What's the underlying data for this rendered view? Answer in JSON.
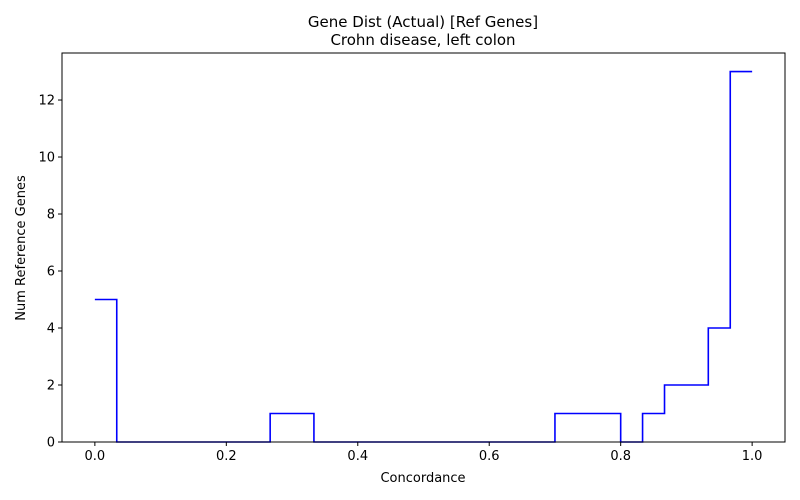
{
  "chart_data": {
    "type": "line",
    "step": "post",
    "title": "Gene Dist (Actual) [Ref Genes]",
    "subtitle": "Crohn disease, left colon",
    "xlabel": "Concordance",
    "ylabel": "Num Reference Genes",
    "xlim": [
      -0.05,
      1.05
    ],
    "ylim": [
      0,
      13.65
    ],
    "xticks": [
      0.0,
      0.2,
      0.4,
      0.6,
      0.8,
      1.0
    ],
    "xtick_labels": [
      "0.0",
      "0.2",
      "0.4",
      "0.6",
      "0.8",
      "1.0"
    ],
    "yticks": [
      0,
      2,
      4,
      6,
      8,
      10,
      12
    ],
    "ytick_labels": [
      "0",
      "2",
      "4",
      "6",
      "8",
      "10",
      "12"
    ],
    "grid": false,
    "series": [
      {
        "color": "#0000ff",
        "x": [
          0.0,
          0.0333,
          0.0667,
          0.1,
          0.1333,
          0.1667,
          0.2,
          0.2333,
          0.2667,
          0.3,
          0.3333,
          0.3667,
          0.4,
          0.4333,
          0.4667,
          0.5,
          0.5333,
          0.5667,
          0.6,
          0.6333,
          0.6667,
          0.7,
          0.7333,
          0.7667,
          0.8,
          0.8333,
          0.8667,
          0.9,
          0.9333,
          0.9667,
          1.0
        ],
        "y": [
          5,
          0,
          0,
          0,
          0,
          0,
          0,
          0,
          1,
          1,
          0,
          0,
          0,
          0,
          0,
          0,
          0,
          0,
          0,
          0,
          0,
          1,
          1,
          1,
          0,
          1,
          2,
          2,
          4,
          13,
          13
        ]
      }
    ]
  }
}
